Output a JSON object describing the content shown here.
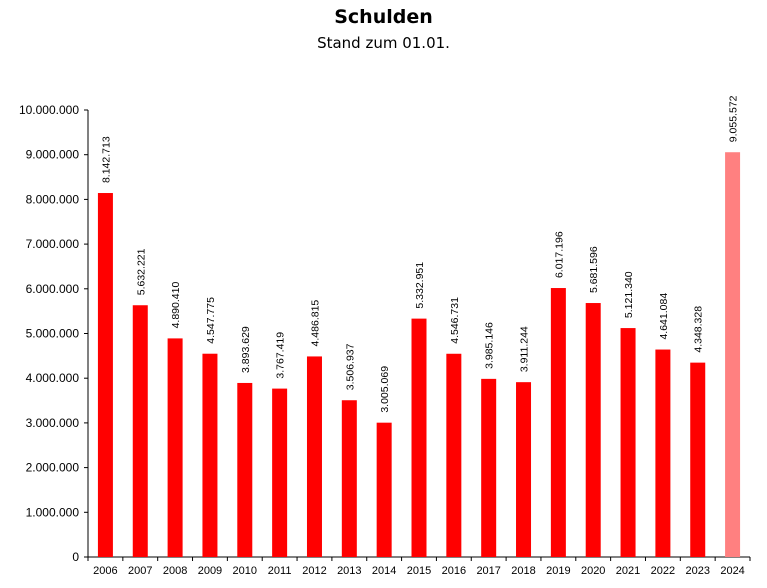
{
  "chart_data": {
    "type": "bar",
    "title": "Schulden",
    "subtitle": "Stand zum 01.01.",
    "categories": [
      "2006",
      "2007",
      "2008",
      "2009",
      "2010",
      "2011",
      "2012",
      "2013",
      "2014",
      "2015",
      "2016",
      "2017",
      "2018",
      "2019",
      "2020",
      "2021",
      "2022",
      "2023",
      "2024"
    ],
    "values": [
      8142713,
      5632221,
      4890410,
      4547775,
      3893629,
      3767419,
      4486815,
      3506937,
      3005069,
      5332951,
      4546731,
      3985146,
      3911244,
      6017196,
      5681596,
      5121340,
      4641084,
      4348328,
      9055572
    ],
    "value_labels": [
      "8.142.713",
      "5.632.221",
      "4.890.410",
      "4.547.775",
      "3.893.629",
      "3.767.419",
      "4.486.815",
      "3.506.937",
      "3.005.069",
      "5.332.951",
      "4.546.731",
      "3.985.146",
      "3.911.244",
      "6.017.196",
      "5.681.596",
      "5.121.340",
      "4.641.084",
      "4.348.328",
      "9.055.572"
    ],
    "yticks": [
      0,
      1000000,
      2000000,
      3000000,
      4000000,
      5000000,
      6000000,
      7000000,
      8000000,
      9000000,
      10000000
    ],
    "ytick_labels": [
      "0",
      "1.000.000",
      "2.000.000",
      "3.000.000",
      "4.000.000",
      "5.000.000",
      "6.000.000",
      "7.000.000",
      "8.000.000",
      "9.000.000",
      "10.000.000"
    ],
    "ylim": [
      0,
      10000000
    ],
    "xlabel": "",
    "ylabel": "",
    "grid": false,
    "colors": {
      "bar": "#ff0000",
      "highlight_bar": "#ff8080",
      "axis": "#000000"
    },
    "highlight_categories": [
      "2024"
    ]
  }
}
